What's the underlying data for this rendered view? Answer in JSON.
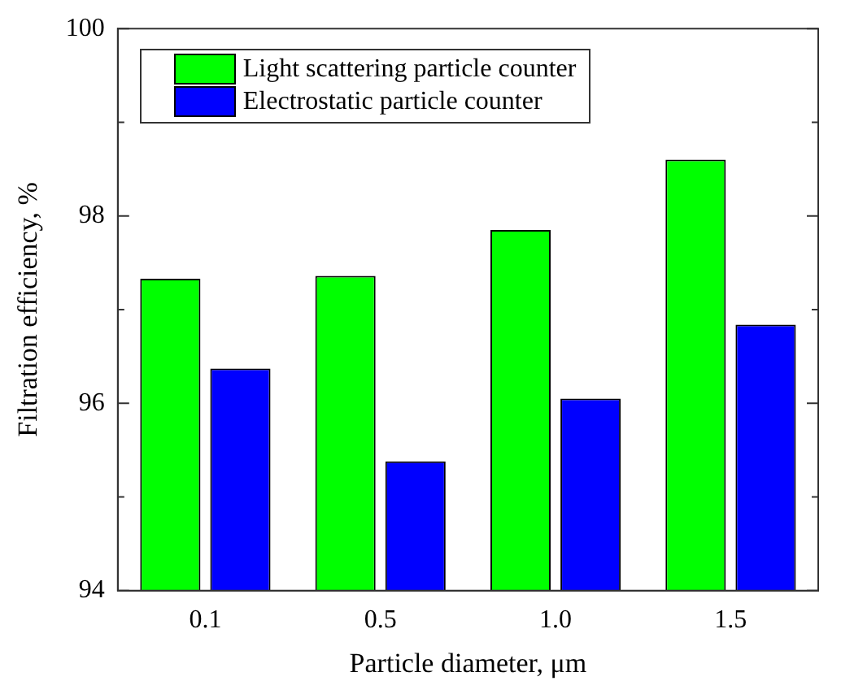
{
  "chart_data": {
    "type": "bar",
    "xlabel": "Particle diameter, μm",
    "ylabel": "Filtration efficiency, %",
    "categories": [
      "0.1",
      "0.5",
      "1.0",
      "1.5"
    ],
    "series": [
      {
        "name": "Light scattering particle counter",
        "color": "#00ff00",
        "values": [
          97.33,
          97.36,
          97.85,
          98.6
        ]
      },
      {
        "name": "Electrostatic particle counter",
        "color": "#0000ff",
        "values": [
          96.37,
          95.38,
          96.05,
          96.84
        ]
      }
    ],
    "ylim": [
      94,
      100
    ],
    "yticks": [
      94,
      {
        "value": 95,
        "label": null
      },
      96,
      {
        "value": 97,
        "label": null
      },
      98,
      {
        "value": 99,
        "label": null
      },
      100
    ],
    "grid": false,
    "legend": "top left"
  }
}
